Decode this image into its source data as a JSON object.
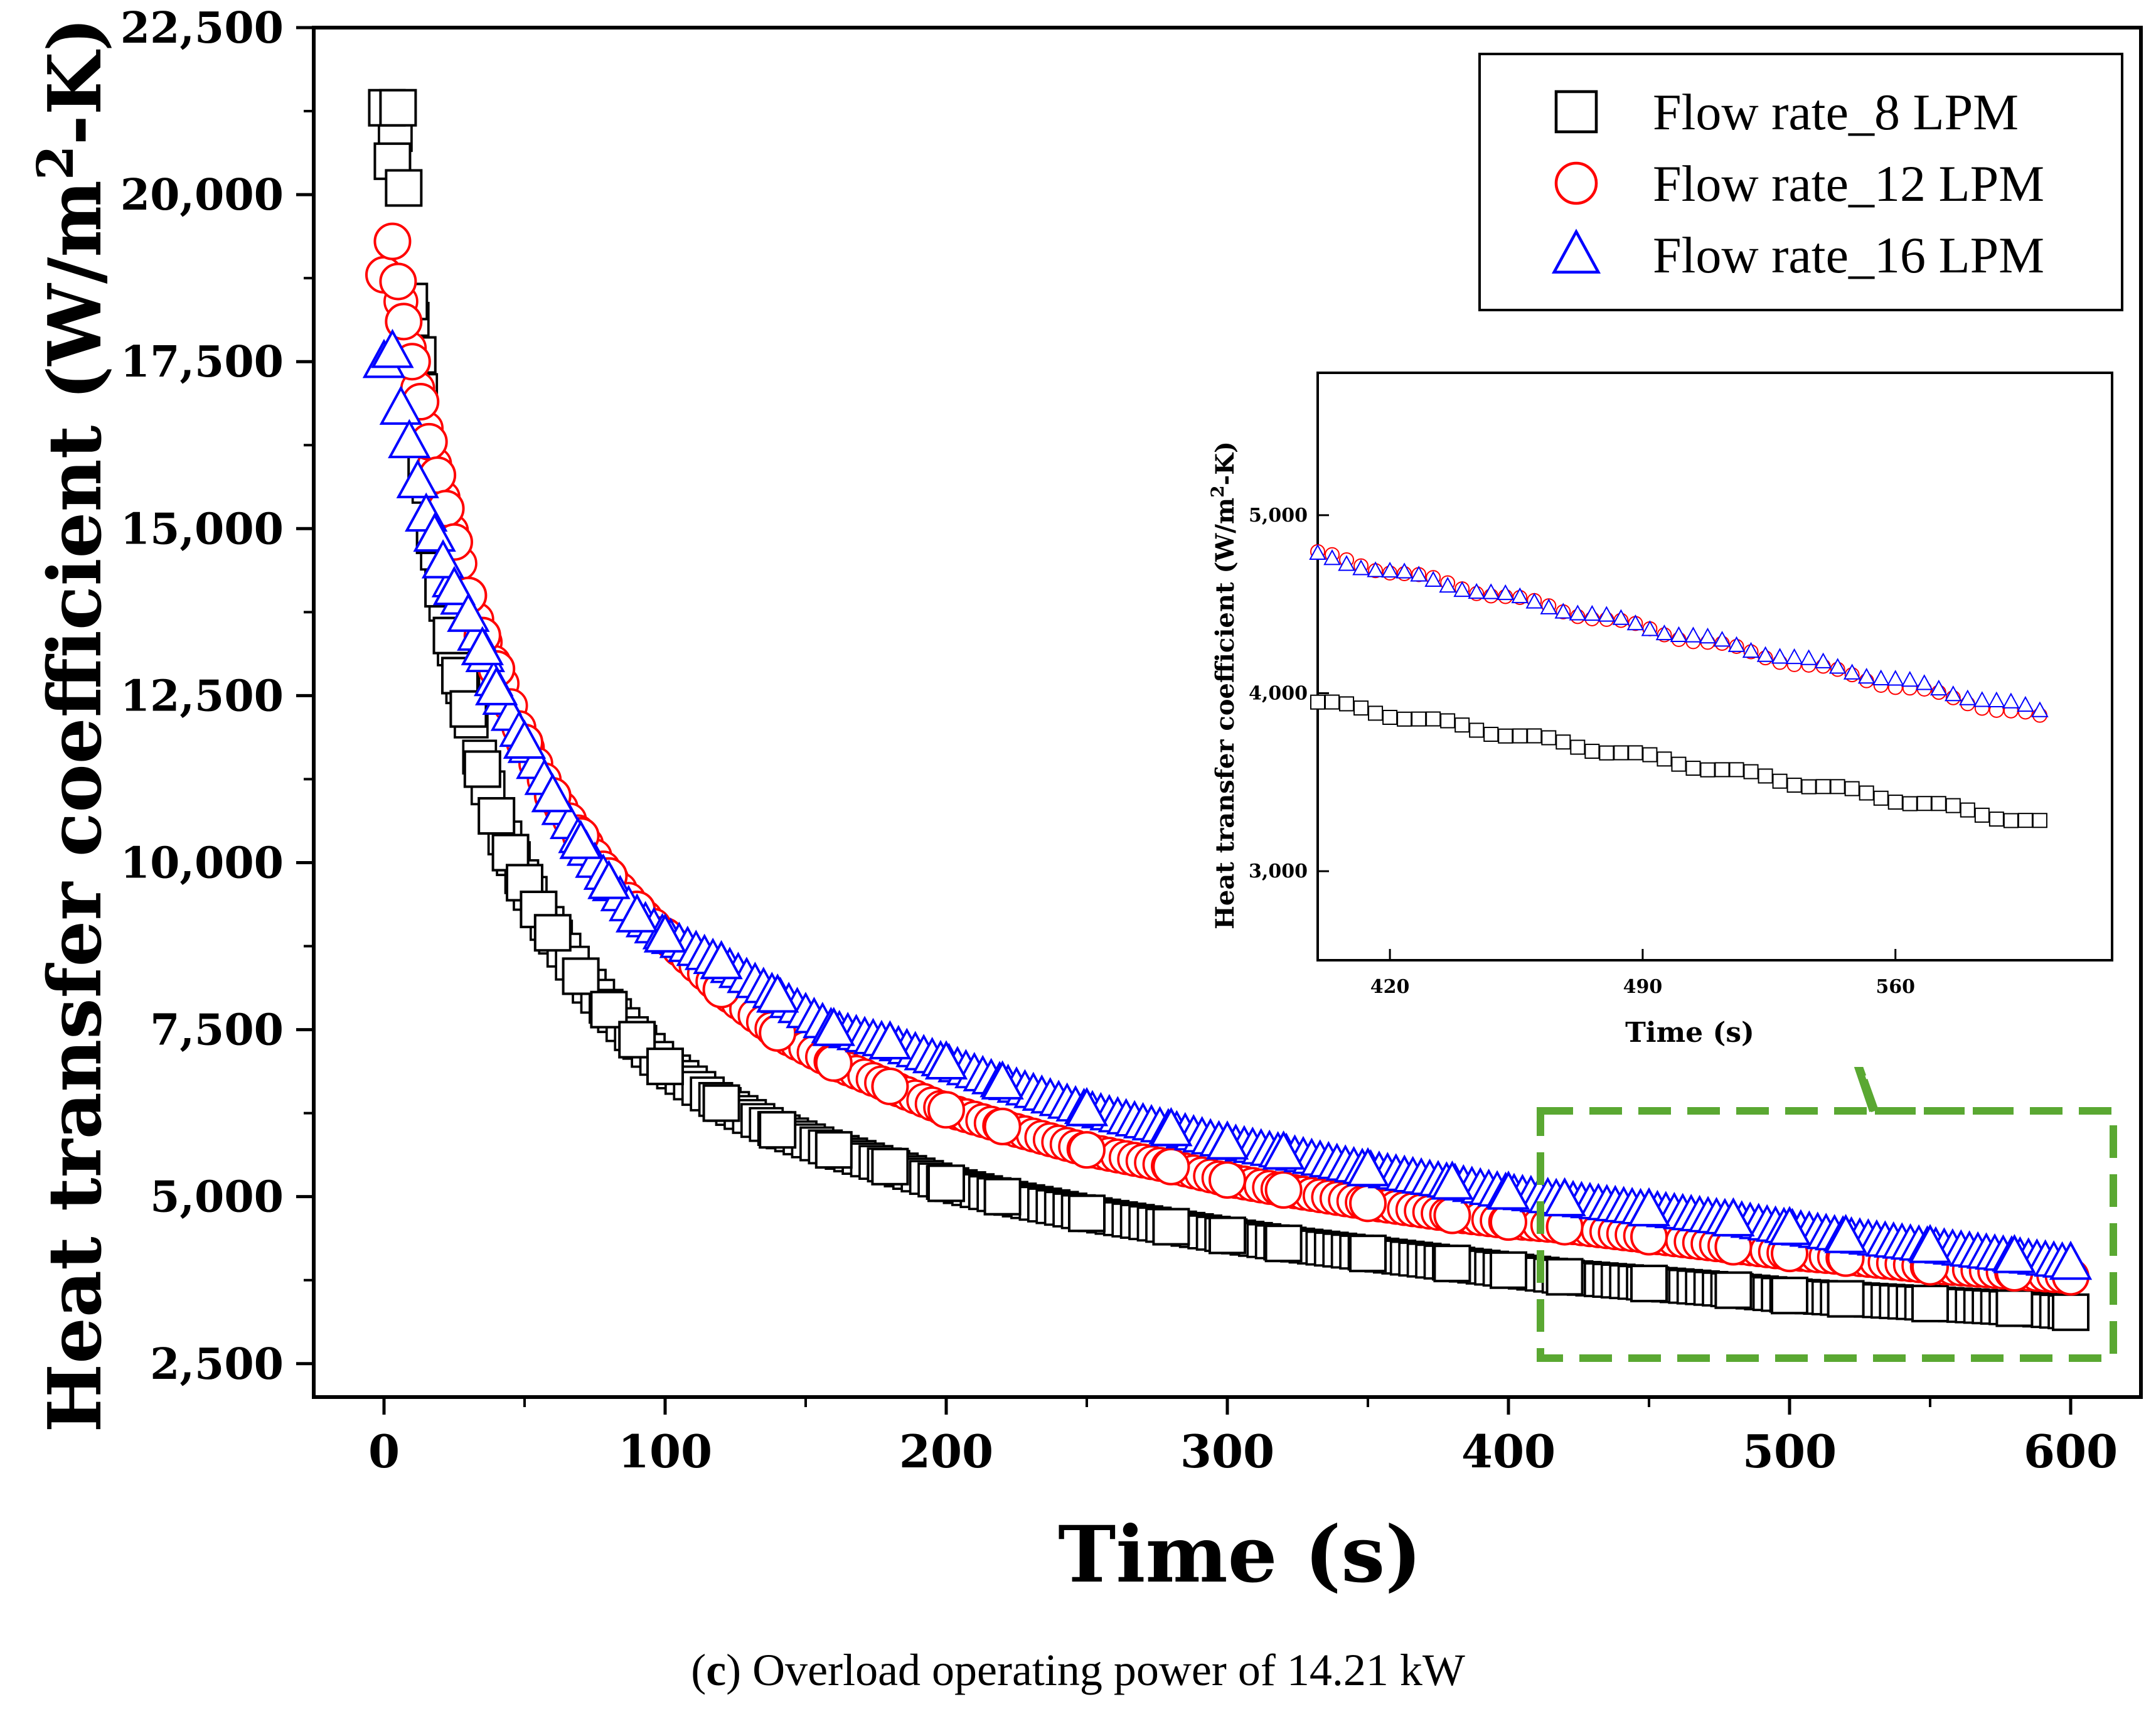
{
  "caption": {
    "label": "c",
    "text": "Overload operating power of 14.21 kW"
  },
  "colors": {
    "series_8": "#000000",
    "series_12": "#ff0000",
    "series_16": "#0000ff",
    "zoom_box": "#5aa832"
  },
  "chart_data": [
    {
      "id": "main",
      "type": "scatter",
      "title": "",
      "xlabel": "Time (s)",
      "ylabel_main": "Heat transfer coefficient (W/m",
      "ylabel_sup": "2",
      "ylabel_end": "-K)",
      "xlim": [
        -25,
        625
      ],
      "ylim": [
        2000,
        22500
      ],
      "xticks": [
        0,
        100,
        200,
        300,
        400,
        500,
        600
      ],
      "xtick_labels": [
        "0",
        "100",
        "200",
        "300",
        "400",
        "500",
        "600"
      ],
      "yticks": [
        2500,
        5000,
        7500,
        10000,
        12500,
        15000,
        17500,
        20000,
        22500
      ],
      "ytick_labels": [
        "2,500",
        "5,000",
        "7,500",
        "10,000",
        "12,500",
        "15,000",
        "17,500",
        "20,000",
        "22,500"
      ],
      "legend": {
        "position": "top-right",
        "entries": [
          "Flow rate_8 LPM",
          "Flow rate_12 LPM",
          "Flow rate_16 LPM"
        ]
      },
      "series": [
        {
          "name": "Flow rate_8 LPM",
          "marker": "square",
          "x": [
            1,
            3,
            5,
            7,
            9,
            12,
            15,
            18,
            21,
            24,
            27,
            30,
            35,
            40,
            45,
            50,
            55,
            60,
            70,
            80,
            90,
            100,
            120,
            140,
            160,
            180,
            200,
            220,
            250,
            280,
            300,
            320,
            350,
            380,
            400,
            420,
            450,
            480,
            500,
            520,
            550,
            580,
            600
          ],
          "y": [
            21300,
            20500,
            21300,
            20100,
            18400,
            17600,
            16000,
            14900,
            14100,
            13400,
            12800,
            12300,
            11400,
            10700,
            10150,
            9700,
            9300,
            8950,
            8300,
            7800,
            7350,
            6950,
            6400,
            6000,
            5700,
            5450,
            5200,
            5000,
            4750,
            4550,
            4420,
            4300,
            4150,
            4000,
            3900,
            3800,
            3700,
            3600,
            3520,
            3470,
            3400,
            3330,
            3270
          ]
        },
        {
          "name": "Flow rate_12 LPM",
          "marker": "circle",
          "x": [
            0,
            3,
            5,
            7,
            10,
            13,
            16,
            19,
            22,
            25,
            30,
            35,
            40,
            50,
            60,
            70,
            80,
            90,
            100,
            120,
            140,
            160,
            180,
            200,
            220,
            250,
            280,
            300,
            320,
            350,
            380,
            400,
            420,
            450,
            480,
            500,
            520,
            550,
            580,
            600
          ],
          "y": [
            18800,
            19300,
            18700,
            18100,
            17500,
            16900,
            16300,
            15800,
            15300,
            14800,
            14000,
            13400,
            12900,
            11800,
            11000,
            10400,
            9800,
            9300,
            8900,
            8100,
            7450,
            7000,
            6650,
            6300,
            6050,
            5700,
            5450,
            5250,
            5100,
            4900,
            4720,
            4620,
            4550,
            4400,
            4250,
            4150,
            4080,
            3950,
            3860,
            3800
          ]
        },
        {
          "name": "Flow rate_16 LPM",
          "marker": "triangle",
          "x": [
            0,
            3,
            6,
            9,
            12,
            15,
            18,
            21,
            25,
            30,
            35,
            40,
            50,
            60,
            70,
            80,
            90,
            100,
            120,
            140,
            160,
            180,
            200,
            220,
            250,
            280,
            300,
            320,
            350,
            380,
            400,
            420,
            450,
            480,
            500,
            520,
            550,
            580,
            600
          ],
          "y": [
            17500,
            17650,
            16800,
            16300,
            15700,
            15200,
            14900,
            14500,
            14100,
            13700,
            13200,
            12600,
            11800,
            11000,
            10300,
            9700,
            9200,
            8900,
            8500,
            8000,
            7500,
            7300,
            7000,
            6700,
            6300,
            6000,
            5800,
            5650,
            5400,
            5200,
            5050,
            4950,
            4800,
            4650,
            4520,
            4400,
            4250,
            4100,
            4000
          ]
        }
      ]
    },
    {
      "id": "inset",
      "type": "scatter",
      "title": "",
      "xlabel": "Time (s)",
      "ylabel_main": "Heat transfer coefficient (W/m",
      "ylabel_sup": "2",
      "ylabel_end": "-K)",
      "xlim": [
        400,
        620
      ],
      "ylim": [
        2500,
        5800
      ],
      "xticks": [
        420,
        490,
        560
      ],
      "xtick_labels": [
        "420",
        "490",
        "560"
      ],
      "yticks": [
        3000,
        4000,
        5000
      ],
      "ytick_labels": [
        "3,000",
        "4,000",
        "5,000"
      ],
      "series": [
        {
          "name": "Flow rate_8 LPM",
          "marker": "square",
          "x_start": 400,
          "x_end": 600,
          "step": 4,
          "y_start": 3950,
          "y_end": 3270
        },
        {
          "name": "Flow rate_12 LPM",
          "marker": "circle",
          "x_start": 400,
          "x_end": 600,
          "step": 4,
          "y_start": 4780,
          "y_end": 3860
        },
        {
          "name": "Flow rate_16 LPM",
          "marker": "triangle",
          "x_start": 400,
          "x_end": 600,
          "step": 4,
          "y_start": 4770,
          "y_end": 3900
        }
      ]
    }
  ]
}
